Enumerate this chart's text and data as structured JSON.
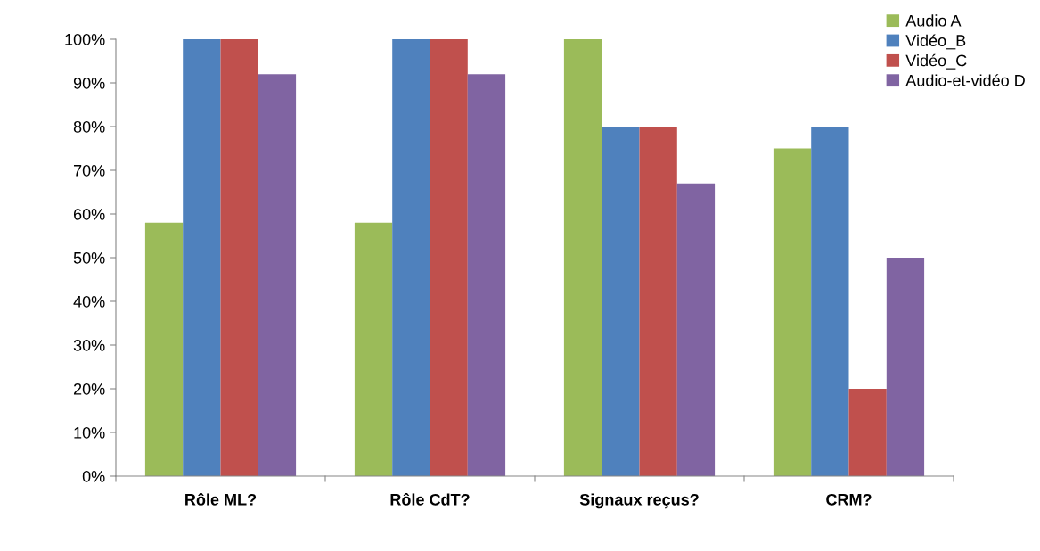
{
  "chart_data": {
    "type": "bar",
    "categories": [
      "Rôle ML?",
      "Rôle CdT?",
      "Signaux reçus?",
      "CRM?"
    ],
    "series": [
      {
        "name": "Audio A",
        "color": "#9bbb59",
        "values": [
          58,
          58,
          100,
          75
        ]
      },
      {
        "name": "Vidéo_B",
        "color": "#4f81bd",
        "values": [
          100,
          100,
          80,
          80
        ]
      },
      {
        "name": "Vidéo_C",
        "color": "#c0504d",
        "values": [
          100,
          100,
          80,
          20
        ]
      },
      {
        "name": "Audio-et-vidéo D",
        "color": "#8064a2",
        "values": [
          92,
          92,
          67,
          50
        ]
      }
    ],
    "ylim": [
      0,
      100
    ],
    "yticks": [
      {
        "value": 0,
        "label": "0%"
      },
      {
        "value": 10,
        "label": "10%"
      },
      {
        "value": 20,
        "label": "20%"
      },
      {
        "value": 30,
        "label": "30%"
      },
      {
        "value": 40,
        "label": "40%"
      },
      {
        "value": 50,
        "label": "50%"
      },
      {
        "value": 60,
        "label": "60%"
      },
      {
        "value": 70,
        "label": "70%"
      },
      {
        "value": 80,
        "label": "80%"
      },
      {
        "value": 90,
        "label": "90%"
      },
      {
        "value": 100,
        "label": "100%"
      }
    ],
    "grid": false,
    "legend": "top right"
  }
}
